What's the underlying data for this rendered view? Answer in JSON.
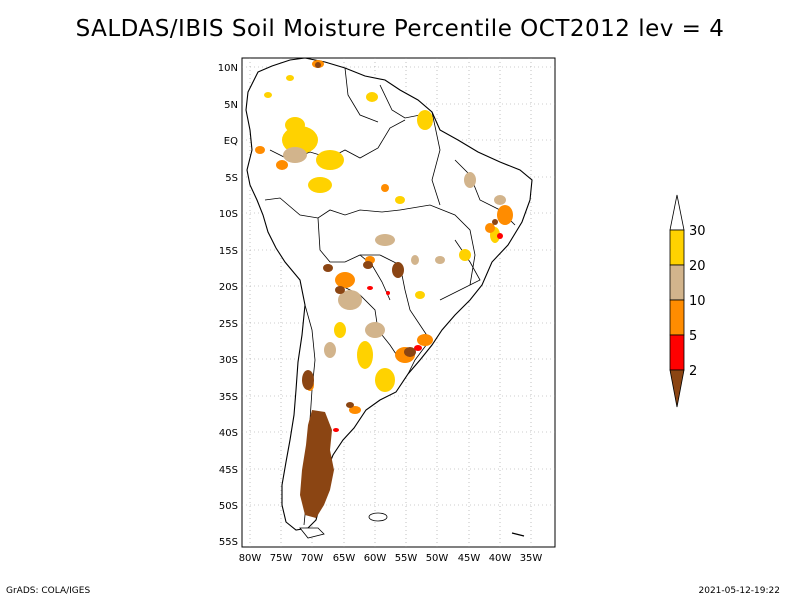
{
  "title": "SALDAS/IBIS Soil Moisture Percentile OCT2012 lev = 4",
  "credits": {
    "left": "GrADS: COLA/IGES",
    "right": "2021-05-12-19:22"
  },
  "map": {
    "lat_labels": [
      "10N",
      "5N",
      "EQ",
      "5S",
      "10S",
      "15S",
      "20S",
      "25S",
      "30S",
      "35S",
      "40S",
      "45S",
      "50S",
      "55S"
    ],
    "lon_labels": [
      "80W",
      "75W",
      "70W",
      "65W",
      "60W",
      "55W",
      "50W",
      "45W",
      "40W",
      "35W"
    ]
  },
  "legend": {
    "labels": [
      "30",
      "20",
      "10",
      "5",
      "2"
    ],
    "colors": {
      "above_30": "#ffffff",
      "20_30": "#ffd200",
      "10_20": "#d2b48c",
      "5_10": "#ff8c00",
      "2_5": "#ff0000",
      "below_2": "#8b4513"
    }
  }
}
